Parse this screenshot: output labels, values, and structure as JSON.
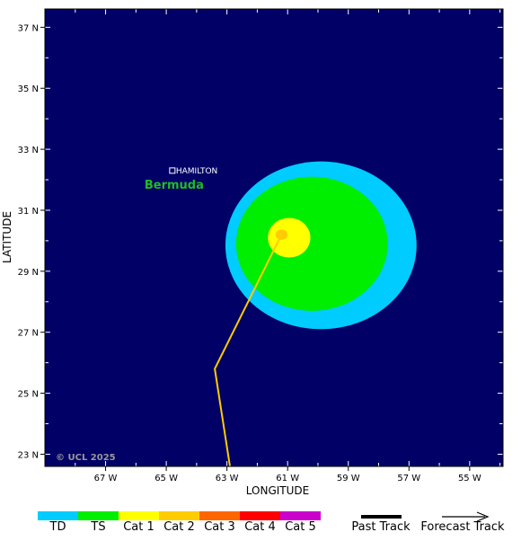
{
  "map": {
    "x_axis_title": "LONGITUDE",
    "y_axis_title": "LATITUDE",
    "background_color": "#000066",
    "lon_range": [
      -69.0,
      -53.9
    ],
    "lat_range": [
      22.6,
      37.6
    ],
    "lon_ticks": [
      {
        "value": -67,
        "label": "67 W"
      },
      {
        "value": -65,
        "label": "65 W"
      },
      {
        "value": -63,
        "label": "63 W"
      },
      {
        "value": -61,
        "label": "61 W"
      },
      {
        "value": -59,
        "label": "59 W"
      },
      {
        "value": -57,
        "label": "57 W"
      },
      {
        "value": -55,
        "label": "55 W"
      }
    ],
    "lat_ticks": [
      {
        "value": 37,
        "label": "37 N"
      },
      {
        "value": 35,
        "label": "35 N"
      },
      {
        "value": 33,
        "label": "33 N"
      },
      {
        "value": 31,
        "label": "31 N"
      },
      {
        "value": 29,
        "label": "29 N"
      },
      {
        "value": 27,
        "label": "27 N"
      },
      {
        "value": 25,
        "label": "25 N"
      },
      {
        "value": 23,
        "label": "23 N"
      }
    ],
    "city_label": "HAMILTON",
    "city_location": {
      "lon": -64.8,
      "lat": 32.3
    },
    "island_label": "Bermuda",
    "island_label_color": "#22bb22",
    "copyright": "© UCL 2025"
  },
  "storm": {
    "track_color": "#ffcc00",
    "track_points": [
      {
        "lon": -62.9,
        "lat": 22.6
      },
      {
        "lon": -63.4,
        "lat": 25.8
      },
      {
        "lon": -61.2,
        "lat": 30.2
      }
    ],
    "wind_fields": [
      {
        "category": "TD",
        "center_lon": -59.9,
        "center_lat": 29.85,
        "radius_lon": 3.15,
        "radius_lat": 2.75
      },
      {
        "category": "TS",
        "center_lon": -60.2,
        "center_lat": 29.9,
        "radius_lon": 2.5,
        "radius_lat": 2.2
      },
      {
        "category": "Cat 1",
        "center_lon": -60.95,
        "center_lat": 30.1,
        "radius_lon": 0.7,
        "radius_lat": 0.65
      },
      {
        "category": "Cat 2",
        "center_lon": -61.2,
        "center_lat": 30.2,
        "radius_lon": 0.2,
        "radius_lat": 0.17
      }
    ]
  },
  "legend": {
    "categories": [
      {
        "label": "TD",
        "color": "#00ccff"
      },
      {
        "label": "TS",
        "color": "#00ee00"
      },
      {
        "label": "Cat 1",
        "color": "#ffff00"
      },
      {
        "label": "Cat 2",
        "color": "#ffcc00"
      },
      {
        "label": "Cat 3",
        "color": "#ff6600"
      },
      {
        "label": "Cat 4",
        "color": "#ff0000"
      },
      {
        "label": "Cat 5",
        "color": "#cc00cc"
      }
    ],
    "past_track_label": "Past Track",
    "forecast_track_label": "Forecast Track"
  }
}
